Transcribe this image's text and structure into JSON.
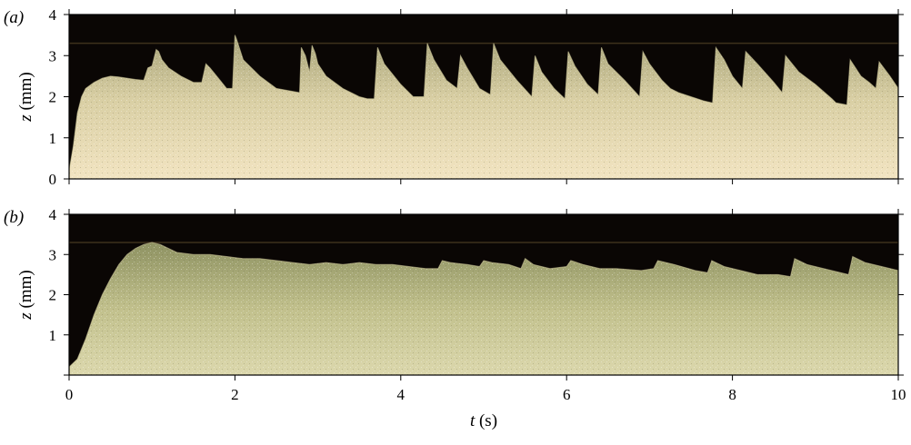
{
  "chart_data": [
    {
      "type": "area",
      "panel_label": "(a)",
      "xlabel": "",
      "ylabel": "z (mm)",
      "xlim": [
        0,
        10
      ],
      "ylim": [
        0,
        4
      ],
      "x_ticks": [
        "",
        "",
        "",
        "",
        "",
        ""
      ],
      "y_ticks": [
        "0",
        "1",
        "2",
        "3",
        "4"
      ],
      "series": [
        {
          "x": [
            0.0,
            0.05,
            0.1,
            0.15,
            0.2,
            0.3,
            0.4,
            0.5,
            0.6,
            0.7,
            0.8,
            0.9,
            0.95,
            1.0,
            1.05,
            1.08,
            1.12,
            1.2,
            1.35,
            1.5,
            1.6,
            1.65,
            1.7,
            1.8,
            1.9,
            1.97,
            2.0,
            2.02,
            2.1,
            2.3,
            2.5,
            2.78,
            2.8,
            2.85,
            2.9,
            2.93,
            2.97,
            3.0,
            3.1,
            3.3,
            3.5,
            3.6,
            3.68,
            3.72,
            3.8,
            4.0,
            4.15,
            4.28,
            4.32,
            4.4,
            4.55,
            4.68,
            4.72,
            4.8,
            4.95,
            5.08,
            5.12,
            5.2,
            5.4,
            5.58,
            5.62,
            5.7,
            5.85,
            5.98,
            6.02,
            6.1,
            6.25,
            6.38,
            6.42,
            6.5,
            6.7,
            6.88,
            6.92,
            7.0,
            7.15,
            7.25,
            7.35,
            7.5,
            7.65,
            7.76,
            7.8,
            7.9,
            8.0,
            8.12,
            8.16,
            8.3,
            8.5,
            8.6,
            8.64,
            8.8,
            9.0,
            9.2,
            9.25,
            9.38,
            9.42,
            9.55,
            9.65,
            9.73,
            9.77,
            9.9,
            10.0
          ],
          "y": [
            0.2,
            0.8,
            1.6,
            2.0,
            2.2,
            2.35,
            2.45,
            2.5,
            2.48,
            2.45,
            2.42,
            2.4,
            2.7,
            2.75,
            3.15,
            3.1,
            2.9,
            2.7,
            2.5,
            2.35,
            2.35,
            2.8,
            2.7,
            2.45,
            2.2,
            2.2,
            3.5,
            3.4,
            2.9,
            2.5,
            2.2,
            2.1,
            3.2,
            3.0,
            2.6,
            3.25,
            3.05,
            2.8,
            2.5,
            2.2,
            2.0,
            1.95,
            1.95,
            3.2,
            2.8,
            2.3,
            2.0,
            2.0,
            3.3,
            2.9,
            2.4,
            2.2,
            3.0,
            2.7,
            2.2,
            2.05,
            3.3,
            2.9,
            2.4,
            2.0,
            3.0,
            2.6,
            2.2,
            1.95,
            3.1,
            2.75,
            2.3,
            2.05,
            3.2,
            2.8,
            2.4,
            2.0,
            3.1,
            2.8,
            2.4,
            2.2,
            2.1,
            2.0,
            1.9,
            1.85,
            3.2,
            2.9,
            2.5,
            2.2,
            3.1,
            2.8,
            2.35,
            2.1,
            3.0,
            2.6,
            2.3,
            1.95,
            1.85,
            1.8,
            2.9,
            2.5,
            2.35,
            2.2,
            2.85,
            2.5,
            2.2
          ]
        }
      ]
    },
    {
      "type": "area",
      "panel_label": "(b)",
      "xlabel": "t (s)",
      "ylabel": "z (mm)",
      "xlim": [
        0,
        10
      ],
      "ylim": [
        0,
        4
      ],
      "x_ticks": [
        "0",
        "2",
        "4",
        "6",
        "8",
        "10"
      ],
      "y_ticks": [
        "",
        "1",
        "2",
        "3",
        "4"
      ],
      "series": [
        {
          "x": [
            0.0,
            0.1,
            0.2,
            0.3,
            0.4,
            0.5,
            0.6,
            0.7,
            0.8,
            0.9,
            1.0,
            1.1,
            1.2,
            1.3,
            1.5,
            1.7,
            1.9,
            2.1,
            2.3,
            2.5,
            2.7,
            2.9,
            3.1,
            3.3,
            3.5,
            3.7,
            3.9,
            4.1,
            4.3,
            4.45,
            4.5,
            4.6,
            4.8,
            4.95,
            5.0,
            5.1,
            5.3,
            5.45,
            5.5,
            5.6,
            5.8,
            6.0,
            6.05,
            6.2,
            6.4,
            6.6,
            6.9,
            7.05,
            7.1,
            7.3,
            7.55,
            7.7,
            7.75,
            7.9,
            8.1,
            8.3,
            8.55,
            8.7,
            8.75,
            8.9,
            9.1,
            9.4,
            9.45,
            9.6,
            9.8,
            10.0
          ],
          "y": [
            0.2,
            0.4,
            0.9,
            1.5,
            2.0,
            2.4,
            2.75,
            3.0,
            3.15,
            3.25,
            3.3,
            3.25,
            3.15,
            3.05,
            3.0,
            3.0,
            2.95,
            2.9,
            2.9,
            2.85,
            2.8,
            2.75,
            2.8,
            2.75,
            2.8,
            2.75,
            2.75,
            2.7,
            2.65,
            2.65,
            2.85,
            2.8,
            2.75,
            2.7,
            2.85,
            2.8,
            2.75,
            2.65,
            2.9,
            2.75,
            2.65,
            2.7,
            2.85,
            2.75,
            2.65,
            2.65,
            2.6,
            2.65,
            2.85,
            2.75,
            2.6,
            2.55,
            2.85,
            2.7,
            2.6,
            2.5,
            2.5,
            2.45,
            2.9,
            2.75,
            2.65,
            2.5,
            2.95,
            2.8,
            2.7,
            2.6
          ]
        }
      ]
    }
  ]
}
